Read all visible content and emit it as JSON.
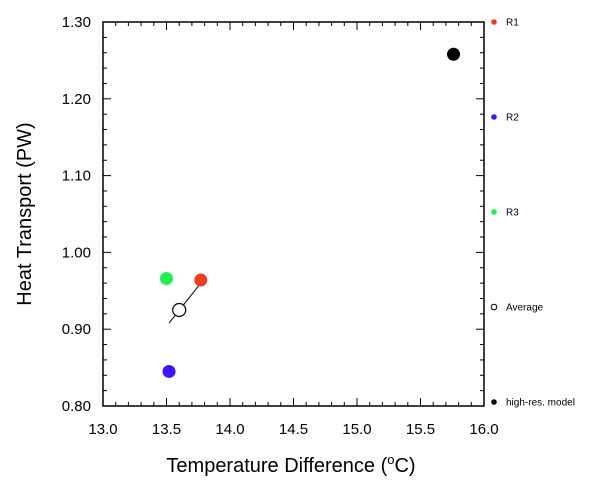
{
  "chart_data": {
    "type": "scatter",
    "title": "",
    "xlabel": "Temperature Difference (",
    "xlabel_unit_super": "o",
    "xlabel_unit": "C)",
    "ylabel": "Heat Transport (PW)",
    "xlim": [
      13.0,
      16.0
    ],
    "ylim": [
      0.8,
      1.3
    ],
    "x_ticks": [
      "13.0",
      "13.5",
      "14.0",
      "14.5",
      "15.0",
      "15.5",
      "16.0"
    ],
    "y_ticks": [
      "0.80",
      "0.90",
      "1.00",
      "1.10",
      "1.20",
      "1.30"
    ],
    "grid": false,
    "legend_position": "right",
    "series": [
      {
        "name": "R1",
        "color": "#f03c1e",
        "marker": "filled-circle",
        "x": [
          13.77
        ],
        "y": [
          0.964
        ]
      },
      {
        "name": "R2",
        "color": "#3c14ff",
        "marker": "filled-circle",
        "x": [
          13.52
        ],
        "y": [
          0.845
        ]
      },
      {
        "name": "R3",
        "color": "#1ef050",
        "marker": "filled-circle",
        "x": [
          13.5
        ],
        "y": [
          0.966
        ]
      },
      {
        "name": "Average",
        "color": "#000000",
        "marker": "open-circle",
        "x": [
          13.6
        ],
        "y": [
          0.925
        ]
      },
      {
        "name": "high-res. model",
        "color": "#000000",
        "marker": "filled-circle",
        "x": [
          15.76
        ],
        "y": [
          1.258
        ]
      }
    ],
    "annotations": [
      {
        "type": "line",
        "color": "#000000",
        "x": [
          13.52,
          13.77
        ],
        "y": [
          0.908,
          0.96
        ]
      }
    ]
  }
}
